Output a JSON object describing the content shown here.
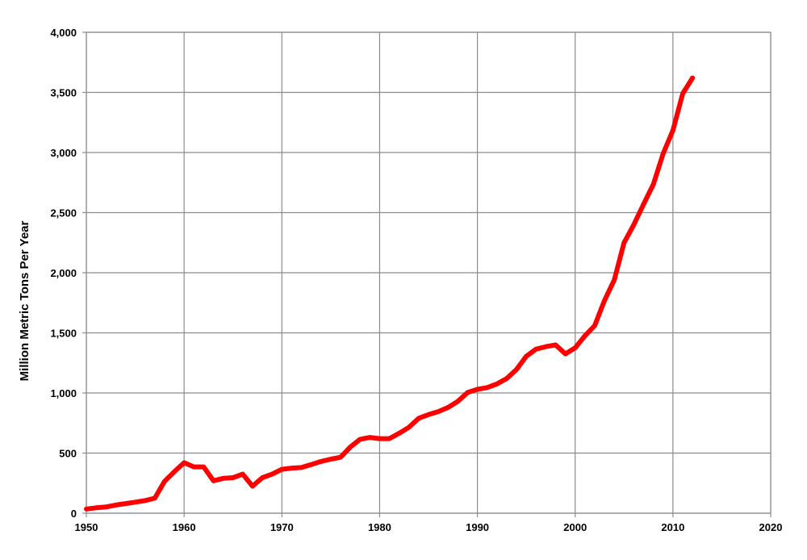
{
  "chart_data": {
    "type": "line",
    "title": "",
    "xlabel": "",
    "ylabel": "Million Metric Tons Per Year",
    "xlim": [
      1950,
      2020
    ],
    "ylim": [
      0,
      4000
    ],
    "x_ticks": [
      1950,
      1960,
      1970,
      1980,
      1990,
      2000,
      2010,
      2020
    ],
    "y_ticks": [
      0,
      500,
      1000,
      1500,
      2000,
      2500,
      3000,
      3500,
      4000
    ],
    "x_tick_labels": [
      "1950",
      "1960",
      "1970",
      "1980",
      "1990",
      "2000",
      "2010",
      "2020"
    ],
    "y_tick_labels": [
      "0",
      "500",
      "1,000",
      "1,500",
      "2,000",
      "2,500",
      "3,000",
      "3,500",
      "4,000"
    ],
    "grid": true,
    "legend": "none",
    "series": [
      {
        "color": "#ff0000",
        "x": [
          1950,
          1951,
          1952,
          1953,
          1954,
          1955,
          1956,
          1957,
          1958,
          1959,
          1960,
          1961,
          1962,
          1963,
          1964,
          1965,
          1966,
          1967,
          1968,
          1969,
          1970,
          1971,
          1972,
          1973,
          1974,
          1975,
          1976,
          1977,
          1978,
          1979,
          1980,
          1981,
          1982,
          1983,
          1984,
          1985,
          1986,
          1987,
          1988,
          1989,
          1990,
          1991,
          1992,
          1993,
          1994,
          1995,
          1996,
          1997,
          1998,
          1999,
          2000,
          2001,
          2002,
          2003,
          2004,
          2005,
          2006,
          2007,
          2008,
          2009,
          2010,
          2011,
          2012
        ],
        "y": [
          35,
          45,
          52,
          68,
          80,
          92,
          105,
          125,
          265,
          345,
          420,
          385,
          385,
          270,
          290,
          295,
          325,
          225,
          295,
          325,
          365,
          375,
          380,
          405,
          430,
          450,
          465,
          550,
          615,
          630,
          620,
          620,
          665,
          715,
          790,
          820,
          845,
          880,
          930,
          1005,
          1030,
          1045,
          1075,
          1120,
          1195,
          1305,
          1365,
          1385,
          1400,
          1325,
          1375,
          1475,
          1560,
          1770,
          1940,
          2250,
          2400,
          2570,
          2735,
          2990,
          3185,
          3490,
          3620
        ]
      }
    ]
  }
}
